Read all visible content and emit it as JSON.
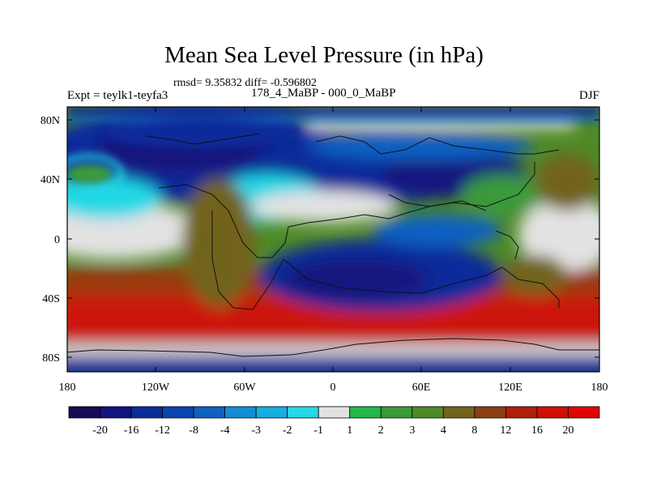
{
  "map": {
    "title": "Mean Sea Level Pressure (in hPa)",
    "stats_text": "rmsd= 9.35832 diff= -0.596802",
    "experiment_label": "Expt = teylk1-teyfa3",
    "period_label": "178_4_MaBP - 000_0_MaBP",
    "season_label": "DJF",
    "lat_labels": [
      "80N",
      "40N",
      "0",
      "40S",
      "80S"
    ],
    "lon_labels": [
      "180",
      "120W",
      "60W",
      "0",
      "60E",
      "120E",
      "180"
    ]
  },
  "colorbar": {
    "labels": [
      "-20",
      "-16",
      "-12",
      "-8",
      "-4",
      "-3",
      "-2",
      "-1",
      "1",
      "2",
      "3",
      "4",
      "8",
      "12",
      "16",
      "20"
    ],
    "colors": [
      "#1a0a55",
      "#12137e",
      "#0d2c9a",
      "#0b45b0",
      "#1060c2",
      "#148dd5",
      "#16aee0",
      "#24d8e6",
      "#e2e2e2",
      "#23b84a",
      "#3b9a3a",
      "#4e8a26",
      "#72641a",
      "#8a4012",
      "#b0200a",
      "#d00f05",
      "#e00505"
    ]
  }
}
